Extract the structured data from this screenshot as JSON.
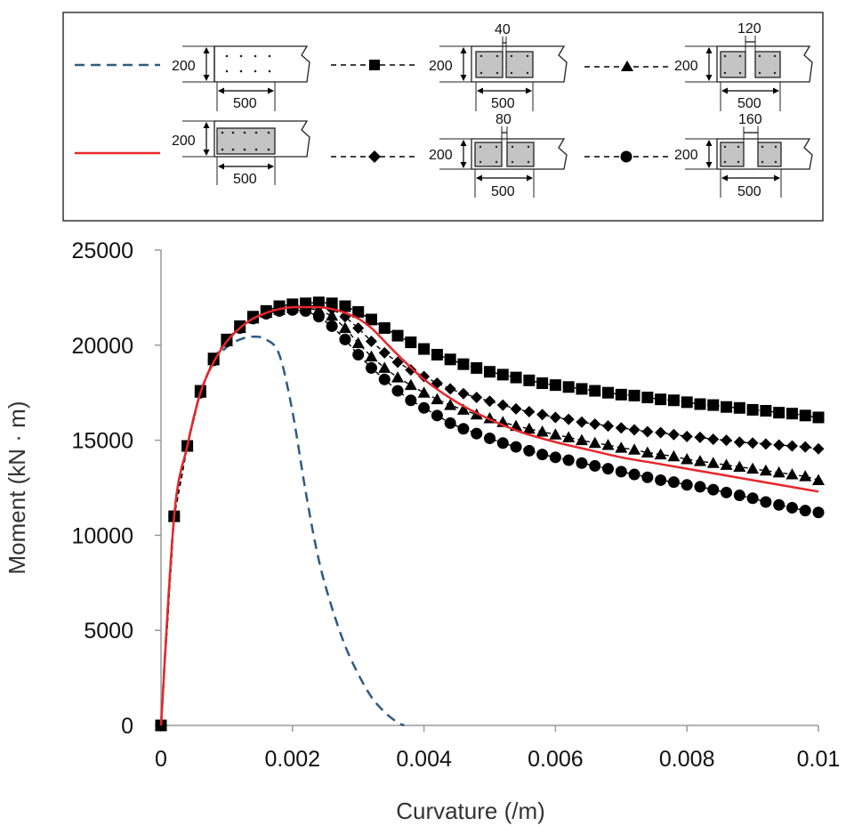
{
  "chart_data": {
    "type": "line",
    "title": "",
    "xlabel": "Curvature (/m)",
    "ylabel": "Moment (kN · m)",
    "xlim": [
      0,
      0.01
    ],
    "ylim": [
      0,
      25000
    ],
    "xticks": [
      0,
      0.002,
      0.004,
      0.006,
      0.008,
      0.01
    ],
    "xtick_labels": [
      "0",
      "0.002",
      "0.004",
      "0.006",
      "0.008",
      "0.01"
    ],
    "yticks": [
      0,
      5000,
      10000,
      15000,
      20000,
      25000
    ],
    "ytick_labels": [
      "0",
      "5000",
      "10000",
      "15000",
      "20000",
      "25000"
    ],
    "grid": false,
    "legend_position": "top",
    "legend": [
      {
        "series": "dashed-blue",
        "style": "dashed line",
        "section": "solid slab, dotted reinforcement (no concrete box)",
        "labels": {
          "depth": "200",
          "width": "500"
        }
      },
      {
        "series": "square",
        "style": "dashed line with squares",
        "section": "two boxed sub-sections, gap 40",
        "labels": {
          "gap": "40",
          "depth": "200",
          "width": "500"
        }
      },
      {
        "series": "triangle",
        "style": "dashed line with triangles",
        "section": "two boxed sub-sections, gap 120",
        "labels": {
          "gap": "120",
          "depth": "200",
          "width": "500"
        }
      },
      {
        "series": "solid-red",
        "style": "solid red line",
        "section": "single boxed concrete section",
        "labels": {
          "depth": "200",
          "width": "500"
        }
      },
      {
        "series": "diamond",
        "style": "dashed line with diamonds",
        "section": "two boxed sub-sections, gap 80",
        "labels": {
          "gap": "80",
          "depth": "200",
          "width": "500"
        }
      },
      {
        "series": "circle",
        "style": "dashed line with circles",
        "section": "two boxed sub-sections, gap 160",
        "labels": {
          "gap": "160",
          "depth": "200",
          "width": "500"
        }
      }
    ],
    "series": [
      {
        "name": "dashed-blue",
        "color": "#2f5a80",
        "marker": "none",
        "dash": true,
        "x": [
          0,
          0.0002,
          0.0004,
          0.0006,
          0.0008,
          0.001,
          0.0012,
          0.0014,
          0.0016,
          0.0018,
          0.002,
          0.0022,
          0.0024,
          0.0026,
          0.0028,
          0.003,
          0.0032,
          0.0034,
          0.0036,
          0.0037
        ],
        "y": [
          0,
          11000,
          14700,
          17500,
          19100,
          19900,
          20300,
          20450,
          20300,
          19500,
          16500,
          12300,
          8700,
          6200,
          4200,
          2700,
          1500,
          700,
          150,
          0
        ]
      },
      {
        "name": "solid-red",
        "color": "#e8262b",
        "marker": "none",
        "dash": false,
        "x": [
          0,
          0.0002,
          0.0004,
          0.0006,
          0.0008,
          0.001,
          0.0012,
          0.0014,
          0.0016,
          0.0018,
          0.002,
          0.0022,
          0.0024,
          0.0026,
          0.0028,
          0.003,
          0.0032,
          0.0034,
          0.0036,
          0.004,
          0.0045,
          0.005,
          0.0055,
          0.006,
          0.0065,
          0.007,
          0.0075,
          0.008,
          0.0085,
          0.009,
          0.0095,
          0.01
        ],
        "y": [
          0,
          11000,
          14700,
          17500,
          19100,
          20200,
          20900,
          21400,
          21700,
          21900,
          22000,
          22000,
          22000,
          21900,
          21700,
          21400,
          20900,
          20200,
          19500,
          18200,
          17000,
          16100,
          15400,
          14900,
          14500,
          14100,
          13800,
          13500,
          13200,
          12900,
          12600,
          12300
        ]
      },
      {
        "name": "square",
        "color": "#000000",
        "marker": "square",
        "dash": true,
        "x": [
          0,
          0.0002,
          0.0004,
          0.0006,
          0.0008,
          0.001,
          0.0012,
          0.0014,
          0.0016,
          0.0018,
          0.002,
          0.0022,
          0.0024,
          0.0026,
          0.0028,
          0.003,
          0.0032,
          0.0034,
          0.0036,
          0.0038,
          0.004,
          0.0042,
          0.0044,
          0.0046,
          0.0048,
          0.005,
          0.0052,
          0.0054,
          0.0056,
          0.0058,
          0.006,
          0.0062,
          0.0064,
          0.0066,
          0.0068,
          0.007,
          0.0072,
          0.0074,
          0.0076,
          0.0078,
          0.008,
          0.0082,
          0.0084,
          0.0086,
          0.0088,
          0.009,
          0.0092,
          0.0094,
          0.0096,
          0.0098,
          0.01
        ],
        "y": [
          0,
          11000,
          14700,
          17600,
          19300,
          20300,
          21000,
          21500,
          21800,
          22050,
          22150,
          22200,
          22250,
          22200,
          22050,
          21750,
          21350,
          20900,
          20500,
          20150,
          19800,
          19500,
          19250,
          19000,
          18800,
          18600,
          18450,
          18300,
          18150,
          18000,
          17900,
          17800,
          17700,
          17600,
          17500,
          17400,
          17350,
          17250,
          17150,
          17100,
          17000,
          16900,
          16850,
          16750,
          16700,
          16600,
          16550,
          16450,
          16400,
          16300,
          16200
        ]
      },
      {
        "name": "diamond",
        "color": "#000000",
        "marker": "diamond",
        "dash": true,
        "x": [
          0,
          0.0002,
          0.0004,
          0.0006,
          0.0008,
          0.001,
          0.0012,
          0.0014,
          0.0016,
          0.0018,
          0.002,
          0.0022,
          0.0024,
          0.0026,
          0.0028,
          0.003,
          0.0032,
          0.0034,
          0.0036,
          0.0038,
          0.004,
          0.0042,
          0.0044,
          0.0046,
          0.0048,
          0.005,
          0.0052,
          0.0054,
          0.0056,
          0.0058,
          0.006,
          0.0062,
          0.0064,
          0.0066,
          0.0068,
          0.007,
          0.0072,
          0.0074,
          0.0076,
          0.0078,
          0.008,
          0.0082,
          0.0084,
          0.0086,
          0.0088,
          0.009,
          0.0092,
          0.0094,
          0.0096,
          0.0098,
          0.01
        ],
        "y": [
          0,
          11000,
          14700,
          17500,
          19200,
          20200,
          20900,
          21400,
          21700,
          21900,
          22050,
          22100,
          22050,
          21900,
          21500,
          20900,
          20200,
          19600,
          19100,
          18700,
          18350,
          18000,
          17700,
          17450,
          17250,
          17050,
          16850,
          16650,
          16500,
          16350,
          16200,
          16100,
          15950,
          15850,
          15750,
          15650,
          15550,
          15450,
          15400,
          15300,
          15200,
          15150,
          15050,
          15000,
          14900,
          14850,
          14800,
          14750,
          14700,
          14650,
          14550
        ]
      },
      {
        "name": "triangle",
        "color": "#000000",
        "marker": "triangle",
        "dash": true,
        "x": [
          0,
          0.0002,
          0.0004,
          0.0006,
          0.0008,
          0.001,
          0.0012,
          0.0014,
          0.0016,
          0.0018,
          0.002,
          0.0022,
          0.0024,
          0.0026,
          0.0028,
          0.003,
          0.0032,
          0.0034,
          0.0036,
          0.0038,
          0.004,
          0.0042,
          0.0044,
          0.0046,
          0.0048,
          0.005,
          0.0052,
          0.0054,
          0.0056,
          0.0058,
          0.006,
          0.0062,
          0.0064,
          0.0066,
          0.0068,
          0.007,
          0.0072,
          0.0074,
          0.0076,
          0.0078,
          0.008,
          0.0082,
          0.0084,
          0.0086,
          0.0088,
          0.009,
          0.0092,
          0.0094,
          0.0096,
          0.0098,
          0.01
        ],
        "y": [
          0,
          11000,
          14700,
          17500,
          19200,
          20200,
          20900,
          21400,
          21700,
          21850,
          21950,
          21950,
          21850,
          21550,
          20900,
          20100,
          19400,
          18800,
          18300,
          17900,
          17500,
          17150,
          16850,
          16600,
          16350,
          16150,
          15950,
          15750,
          15600,
          15450,
          15300,
          15150,
          15000,
          14850,
          14750,
          14600,
          14500,
          14350,
          14250,
          14150,
          14000,
          13900,
          13800,
          13700,
          13600,
          13500,
          13400,
          13300,
          13200,
          13100,
          12900
        ]
      },
      {
        "name": "circle",
        "color": "#000000",
        "marker": "circle",
        "dash": true,
        "x": [
          0,
          0.0002,
          0.0004,
          0.0006,
          0.0008,
          0.001,
          0.0012,
          0.0014,
          0.0016,
          0.0018,
          0.002,
          0.0022,
          0.0024,
          0.0026,
          0.0028,
          0.003,
          0.0032,
          0.0034,
          0.0036,
          0.0038,
          0.004,
          0.0042,
          0.0044,
          0.0046,
          0.0048,
          0.005,
          0.0052,
          0.0054,
          0.0056,
          0.0058,
          0.006,
          0.0062,
          0.0064,
          0.0066,
          0.0068,
          0.007,
          0.0072,
          0.0074,
          0.0076,
          0.0078,
          0.008,
          0.0082,
          0.0084,
          0.0086,
          0.0088,
          0.009,
          0.0092,
          0.0094,
          0.0096,
          0.0098,
          0.01
        ],
        "y": [
          0,
          11000,
          14700,
          17500,
          19200,
          20200,
          20900,
          21400,
          21650,
          21800,
          21850,
          21800,
          21500,
          21000,
          20300,
          19500,
          18800,
          18200,
          17600,
          17100,
          16700,
          16300,
          15900,
          15600,
          15350,
          15100,
          14850,
          14650,
          14450,
          14250,
          14100,
          13950,
          13800,
          13650,
          13500,
          13350,
          13200,
          13050,
          12900,
          12800,
          12650,
          12550,
          12400,
          12250,
          12100,
          11950,
          11750,
          11600,
          11450,
          11300,
          11200
        ]
      }
    ]
  }
}
